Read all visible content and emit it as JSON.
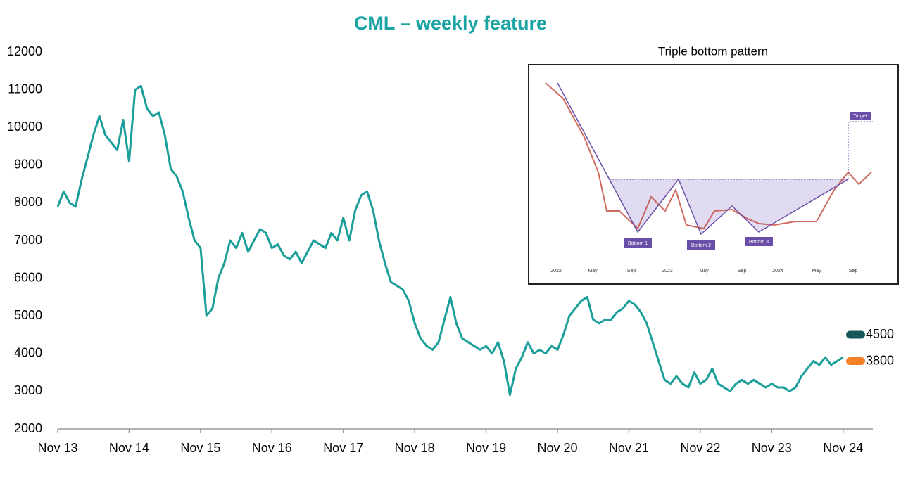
{
  "chart_data": {
    "type": "line",
    "title": "CML – weekly feature",
    "color": "#1a9e9a",
    "x": [
      "2013-11",
      "2013-12",
      "2014-01",
      "2014-02",
      "2014-03",
      "2014-04",
      "2014-05",
      "2014-06",
      "2014-07",
      "2014-08",
      "2014-09",
      "2014-10",
      "2014-11",
      "2014-12",
      "2015-01",
      "2015-02",
      "2015-03",
      "2015-04",
      "2015-05",
      "2015-06",
      "2015-07",
      "2015-08",
      "2015-09",
      "2015-10",
      "2015-11",
      "2015-12",
      "2016-01",
      "2016-02",
      "2016-03",
      "2016-04",
      "2016-05",
      "2016-06",
      "2016-07",
      "2016-08",
      "2016-09",
      "2016-10",
      "2016-11",
      "2016-12",
      "2017-01",
      "2017-02",
      "2017-03",
      "2017-04",
      "2017-05",
      "2017-06",
      "2017-07",
      "2017-08",
      "2017-09",
      "2017-10",
      "2017-11",
      "2017-12",
      "2018-01",
      "2018-02",
      "2018-03",
      "2018-04",
      "2018-05",
      "2018-06",
      "2018-07",
      "2018-08",
      "2018-09",
      "2018-10",
      "2018-11",
      "2018-12",
      "2019-01",
      "2019-02",
      "2019-03",
      "2019-04",
      "2019-05",
      "2019-06",
      "2019-07",
      "2019-08",
      "2019-09",
      "2019-10",
      "2019-11",
      "2019-12",
      "2020-01",
      "2020-02",
      "2020-03",
      "2020-04",
      "2020-05",
      "2020-06",
      "2020-07",
      "2020-08",
      "2020-09",
      "2020-10",
      "2020-11",
      "2020-12",
      "2021-01",
      "2021-02",
      "2021-03",
      "2021-04",
      "2021-05",
      "2021-06",
      "2021-07",
      "2021-08",
      "2021-09",
      "2021-10",
      "2021-11",
      "2021-12",
      "2022-01",
      "2022-02",
      "2022-03",
      "2022-04",
      "2022-05",
      "2022-06",
      "2022-07",
      "2022-08",
      "2022-09",
      "2022-10",
      "2022-11",
      "2022-12",
      "2023-01",
      "2023-02",
      "2023-03",
      "2023-04",
      "2023-05",
      "2023-06",
      "2023-07",
      "2023-08",
      "2023-09",
      "2023-10",
      "2023-11",
      "2023-12",
      "2024-01",
      "2024-02",
      "2024-03",
      "2024-04",
      "2024-05",
      "2024-06",
      "2024-07",
      "2024-08",
      "2024-09",
      "2024-10",
      "2024-11"
    ],
    "values": [
      7900,
      8300,
      8000,
      7900,
      8600,
      9200,
      9800,
      10300,
      9800,
      9600,
      9400,
      10200,
      9100,
      11000,
      11100,
      10500,
      10300,
      10400,
      9800,
      8900,
      8700,
      8300,
      7600,
      7000,
      6800,
      5000,
      5200,
      6000,
      6400,
      7000,
      6800,
      7200,
      6700,
      7000,
      7300,
      7200,
      6800,
      6900,
      6600,
      6500,
      6700,
      6400,
      6700,
      7000,
      6900,
      6800,
      7200,
      7000,
      7600,
      7000,
      7800,
      8200,
      8300,
      7800,
      7000,
      6400,
      5900,
      5800,
      5700,
      5400,
      4800,
      4400,
      4200,
      4100,
      4300,
      4900,
      5500,
      4800,
      4400,
      4300,
      4200,
      4100,
      4200,
      4000,
      4300,
      3800,
      2900,
      3600,
      3900,
      4300,
      4000,
      4100,
      4000,
      4200,
      4100,
      4500,
      5000,
      5200,
      5400,
      5500,
      4900,
      4800,
      4900,
      4900,
      5100,
      5200,
      5400,
      5300,
      5100,
      4800,
      4300,
      3800,
      3300,
      3200,
      3400,
      3200,
      3100,
      3500,
      3200,
      3300,
      3600,
      3200,
      3100,
      3000,
      3200,
      3300,
      3200,
      3300,
      3200,
      3100,
      3200,
      3100,
      3100,
      3000,
      3100,
      3400,
      3600,
      3800,
      3700,
      3900,
      3700,
      3800,
      3900
    ],
    "xlim": [
      "2013-11",
      "2025-04"
    ],
    "xticks": [
      {
        "value": "2013-11",
        "label": "Nov 13"
      },
      {
        "value": "2014-11",
        "label": "Nov 14"
      },
      {
        "value": "2015-11",
        "label": "Nov 15"
      },
      {
        "value": "2016-11",
        "label": "Nov 16"
      },
      {
        "value": "2017-11",
        "label": "Nov 17"
      },
      {
        "value": "2018-11",
        "label": "Nov 18"
      },
      {
        "value": "2019-11",
        "label": "Nov 19"
      },
      {
        "value": "2020-11",
        "label": "Nov 20"
      },
      {
        "value": "2021-11",
        "label": "Nov 21"
      },
      {
        "value": "2022-11",
        "label": "Nov 22"
      },
      {
        "value": "2023-11",
        "label": "Nov 23"
      },
      {
        "value": "2024-11",
        "label": "Nov 24"
      }
    ],
    "ylim": [
      2000,
      12000
    ],
    "yticks": [
      2000,
      3000,
      4000,
      5000,
      6000,
      7000,
      8000,
      9000,
      10000,
      11000,
      12000
    ],
    "markers": [
      {
        "value": 4500,
        "color": "#17595a"
      },
      {
        "value": 3800,
        "color": "#f58025"
      }
    ]
  },
  "inset": {
    "title": "Triple bottom pattern",
    "labels": [
      "Bottom 1",
      "Bottom 2",
      "Bottom 3",
      "Target"
    ],
    "axis_labels": [
      "2022",
      "May",
      "Sep",
      "2023",
      "May",
      "Sep",
      "2024",
      "May",
      "Sep"
    ]
  }
}
